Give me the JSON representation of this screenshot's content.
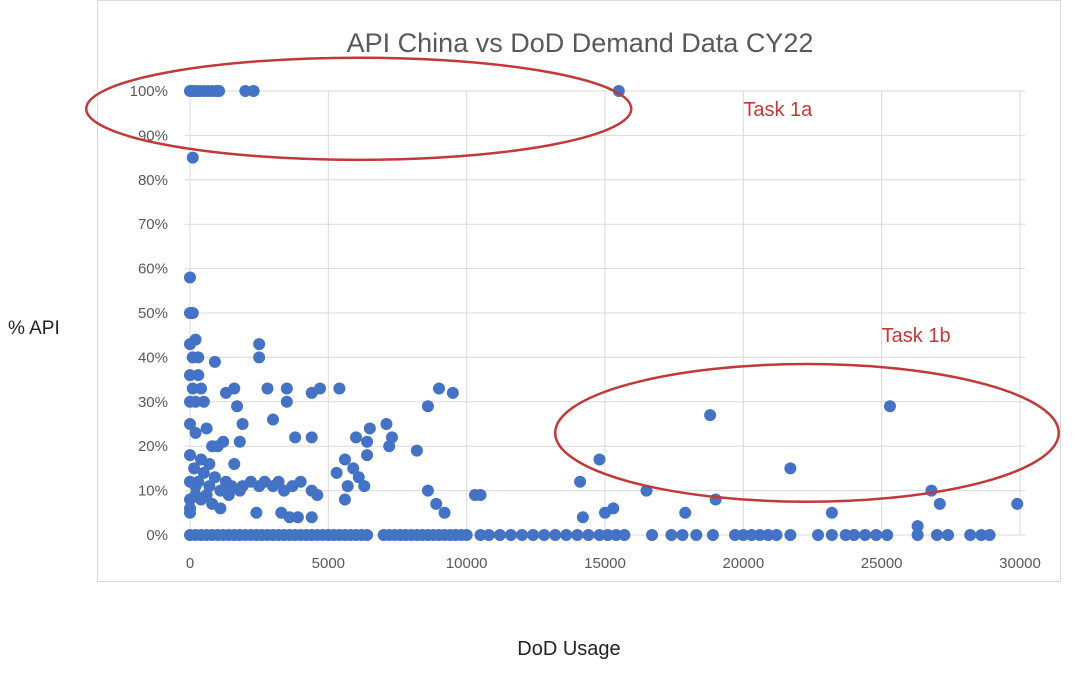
{
  "chart_data": {
    "type": "scatter",
    "title": "API China vs DoD Demand Data CY22",
    "xlabel": "DoD Usage",
    "ylabel": "% API",
    "xlim": [
      0,
      30000
    ],
    "ylim": [
      0,
      1
    ],
    "x_ticks": [
      0,
      5000,
      10000,
      15000,
      20000,
      25000,
      30000
    ],
    "x_tick_labels": [
      "0",
      "5000",
      "10000",
      "15000",
      "20000",
      "25000",
      "30000"
    ],
    "y_ticks": [
      0,
      0.1,
      0.2,
      0.3,
      0.4,
      0.5,
      0.6,
      0.7,
      0.8,
      0.9,
      1.0
    ],
    "y_tick_labels": [
      "0%",
      "10%",
      "20%",
      "30%",
      "40%",
      "50%",
      "60%",
      "70%",
      "80%",
      "90%",
      "100%"
    ],
    "grid": true,
    "marker_color": "#4472c4",
    "annotation_color": "#c0393b",
    "annotations": [
      {
        "text": "Task 1a",
        "x": 20000,
        "y": 0.96
      },
      {
        "text": "Task 1b",
        "x": 25000,
        "y": 0.45
      }
    ],
    "highlight_ellipses": [
      {
        "label": "Task 1a",
        "cx": 6100,
        "cy": 0.96,
        "rx": 9850,
        "ry": 0.115
      },
      {
        "label": "Task 1b",
        "cx": 22300,
        "cy": 0.23,
        "rx": 9100,
        "ry": 0.155
      }
    ],
    "points": [
      [
        0,
        1.0
      ],
      [
        100,
        1.0
      ],
      [
        200,
        1.0
      ],
      [
        350,
        1.0
      ],
      [
        500,
        1.0
      ],
      [
        650,
        1.0
      ],
      [
        800,
        1.0
      ],
      [
        950,
        1.0
      ],
      [
        1050,
        1.0
      ],
      [
        2000,
        1.0
      ],
      [
        2300,
        1.0
      ],
      [
        15500,
        1.0
      ],
      [
        100,
        0.85
      ],
      [
        0,
        0.58
      ],
      [
        0,
        0.5
      ],
      [
        100,
        0.5
      ],
      [
        0,
        0.43
      ],
      [
        200,
        0.44
      ],
      [
        100,
        0.4
      ],
      [
        300,
        0.4
      ],
      [
        900,
        0.39
      ],
      [
        2500,
        0.43
      ],
      [
        2500,
        0.4
      ],
      [
        0,
        0.36
      ],
      [
        300,
        0.36
      ],
      [
        100,
        0.33
      ],
      [
        400,
        0.33
      ],
      [
        200,
        0.3
      ],
      [
        0,
        0.3
      ],
      [
        500,
        0.3
      ],
      [
        1300,
        0.32
      ],
      [
        1600,
        0.33
      ],
      [
        1700,
        0.29
      ],
      [
        2800,
        0.33
      ],
      [
        3500,
        0.33
      ],
      [
        3500,
        0.3
      ],
      [
        4400,
        0.32
      ],
      [
        4700,
        0.33
      ],
      [
        5400,
        0.33
      ],
      [
        3000,
        0.26
      ],
      [
        9000,
        0.33
      ],
      [
        9500,
        0.32
      ],
      [
        8600,
        0.29
      ],
      [
        0,
        0.25
      ],
      [
        200,
        0.23
      ],
      [
        600,
        0.24
      ],
      [
        1000,
        0.2
      ],
      [
        800,
        0.2
      ],
      [
        1200,
        0.21
      ],
      [
        1900,
        0.25
      ],
      [
        1800,
        0.21
      ],
      [
        3800,
        0.22
      ],
      [
        4400,
        0.22
      ],
      [
        6000,
        0.22
      ],
      [
        6400,
        0.21
      ],
      [
        6500,
        0.24
      ],
      [
        7100,
        0.25
      ],
      [
        7300,
        0.22
      ],
      [
        7200,
        0.2
      ],
      [
        8200,
        0.19
      ],
      [
        6400,
        0.18
      ],
      [
        0,
        0.18
      ],
      [
        150,
        0.15
      ],
      [
        400,
        0.17
      ],
      [
        700,
        0.16
      ],
      [
        1600,
        0.16
      ],
      [
        5600,
        0.17
      ],
      [
        5900,
        0.15
      ],
      [
        5300,
        0.14
      ],
      [
        6100,
        0.13
      ],
      [
        14800,
        0.17
      ],
      [
        500,
        0.14
      ],
      [
        900,
        0.13
      ],
      [
        0,
        0.12
      ],
      [
        200,
        0.11
      ],
      [
        300,
        0.12
      ],
      [
        700,
        0.11
      ],
      [
        1100,
        0.1
      ],
      [
        1300,
        0.12
      ],
      [
        1500,
        0.11
      ],
      [
        1900,
        0.11
      ],
      [
        2200,
        0.12
      ],
      [
        2500,
        0.11
      ],
      [
        2700,
        0.12
      ],
      [
        3000,
        0.11
      ],
      [
        3200,
        0.12
      ],
      [
        3400,
        0.1
      ],
      [
        3700,
        0.11
      ],
      [
        4000,
        0.12
      ],
      [
        4400,
        0.1
      ],
      [
        5700,
        0.11
      ],
      [
        6300,
        0.11
      ],
      [
        8600,
        0.1
      ],
      [
        10500,
        0.09
      ],
      [
        14100,
        0.12
      ],
      [
        0,
        0.08
      ],
      [
        200,
        0.09
      ],
      [
        400,
        0.08
      ],
      [
        600,
        0.09
      ],
      [
        800,
        0.07
      ],
      [
        1100,
        0.06
      ],
      [
        1400,
        0.09
      ],
      [
        1800,
        0.1
      ],
      [
        3300,
        0.05
      ],
      [
        3600,
        0.04
      ],
      [
        3900,
        0.04
      ],
      [
        4400,
        0.04
      ],
      [
        4600,
        0.09
      ],
      [
        5600,
        0.08
      ],
      [
        8900,
        0.07
      ],
      [
        9200,
        0.05
      ],
      [
        10300,
        0.09
      ],
      [
        14200,
        0.04
      ],
      [
        15000,
        0.05
      ],
      [
        15300,
        0.06
      ],
      [
        16500,
        0.1
      ],
      [
        17900,
        0.05
      ],
      [
        19000,
        0.08
      ],
      [
        2400,
        0.05
      ],
      [
        18800,
        0.27
      ],
      [
        25300,
        0.29
      ],
      [
        21700,
        0.15
      ],
      [
        26800,
        0.1
      ],
      [
        27100,
        0.07
      ],
      [
        29900,
        0.07
      ],
      [
        23200,
        0.05
      ],
      [
        26300,
        0.02
      ],
      [
        0,
        0.06
      ],
      [
        0,
        0.05
      ]
    ],
    "zero_points_x": [
      0,
      200,
      400,
      600,
      800,
      1000,
      1200,
      1400,
      1600,
      1800,
      2000,
      2200,
      2400,
      2600,
      2800,
      3000,
      3200,
      3400,
      3600,
      3800,
      4000,
      4200,
      4400,
      4600,
      4800,
      5000,
      5200,
      5400,
      5600,
      5800,
      6000,
      6200,
      6400,
      7000,
      7200,
      7400,
      7600,
      7800,
      8000,
      8200,
      8400,
      8600,
      8800,
      9000,
      9200,
      9400,
      9600,
      9800,
      10000,
      10500,
      10800,
      11200,
      11600,
      12000,
      12400,
      12800,
      13200,
      13600,
      14000,
      14400,
      14800,
      15100,
      15400,
      15700,
      16700,
      17400,
      17800,
      18300,
      18900,
      19700,
      20000,
      20300,
      20600,
      20900,
      21200,
      21700,
      22700,
      23200,
      23700,
      24000,
      24400,
      24800,
      25200,
      26300,
      27000,
      27400,
      28200,
      28600,
      28900
    ]
  }
}
